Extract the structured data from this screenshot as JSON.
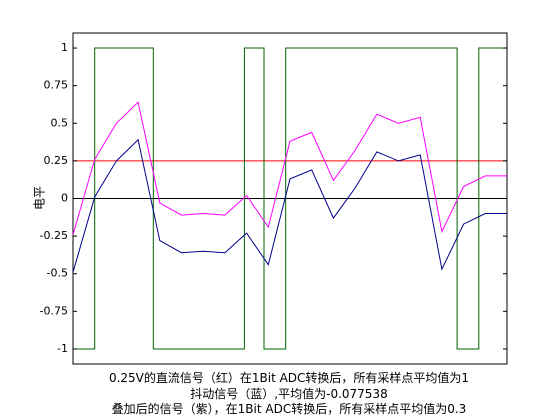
{
  "chart_data": {
    "type": "line",
    "ylabel": "电平",
    "ylim": [
      -1.1,
      1.1
    ],
    "xlim": [
      0,
      1
    ],
    "grid": false,
    "yticks": [
      1,
      0.75,
      0.5,
      0.25,
      0,
      -0.25,
      -0.5,
      -0.75,
      -1
    ],
    "ytick_labels": [
      "1",
      "0.75",
      "0.5",
      "0.25",
      "0",
      "-0.25",
      "-0.5",
      "-0.75",
      "-1"
    ],
    "colors": {
      "adc_output": "#006400",
      "dc_signal": "#ff0000",
      "zero_line": "#000000",
      "dither": "#00008b",
      "sum": "#ff00ff"
    },
    "adc_output_levels": [
      -1,
      -1,
      1,
      1,
      -1,
      -1,
      -1,
      -1,
      1,
      1,
      -1,
      -1,
      1,
      1,
      1,
      1,
      1,
      1,
      1,
      1,
      -1,
      -1,
      1,
      1
    ],
    "adc_output_x": [
      0,
      0.05,
      0.05,
      0.185,
      0.185,
      0.395,
      0.395,
      0.395,
      0.395,
      0.44,
      0.44,
      0.49,
      0.49,
      0.62,
      0.62,
      0.7,
      0.7,
      0.8,
      0.8,
      0.885,
      0.885,
      0.935,
      0.935,
      1
    ],
    "dc_level": 0.25,
    "zero_level": 0,
    "dither_values": {
      "x": [
        0,
        0.05,
        0.1,
        0.15,
        0.2,
        0.25,
        0.3,
        0.35,
        0.4,
        0.45,
        0.5,
        0.55,
        0.6,
        0.65,
        0.7,
        0.75,
        0.8,
        0.85,
        0.9,
        0.95,
        1
      ],
      "y": [
        -0.49,
        0.01,
        0.25,
        0.39,
        -0.28,
        -0.36,
        -0.35,
        -0.36,
        -0.23,
        -0.44,
        0.13,
        0.19,
        -0.13,
        0.07,
        0.31,
        0.25,
        0.29,
        -0.47,
        -0.17,
        -0.1,
        -0.1
      ]
    },
    "sum_values": {
      "x": [
        0,
        0.05,
        0.1,
        0.15,
        0.2,
        0.25,
        0.3,
        0.35,
        0.4,
        0.45,
        0.5,
        0.55,
        0.6,
        0.65,
        0.7,
        0.75,
        0.8,
        0.85,
        0.9,
        0.95,
        1
      ],
      "y": [
        -0.24,
        0.26,
        0.5,
        0.64,
        -0.03,
        -0.11,
        -0.1,
        -0.11,
        0.02,
        -0.19,
        0.38,
        0.44,
        0.12,
        0.32,
        0.56,
        0.5,
        0.54,
        -0.22,
        0.08,
        0.15,
        0.15
      ]
    },
    "caption_lines": [
      "0.25V的直流信号（红）在1Bit ADC转换后，所有采样点平均值为1",
      "抖动信号（蓝）,平均值为-0.077538",
      "叠加后的信号（紫），在1Bit ADC转换后，所有采样点平均值为0.3"
    ]
  }
}
